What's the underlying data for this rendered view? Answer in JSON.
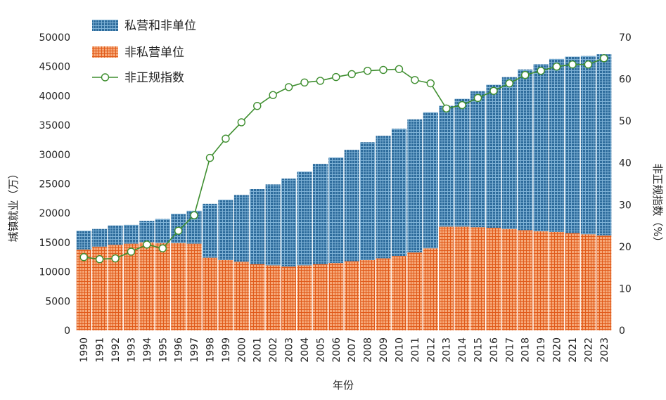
{
  "chart_data": {
    "type": "bar",
    "stacked": true,
    "categories": [
      "1990",
      "1991",
      "1992",
      "1993",
      "1994",
      "1995",
      "1996",
      "1997",
      "1998",
      "1999",
      "2000",
      "2001",
      "2002",
      "2003",
      "2004",
      "2005",
      "2006",
      "2007",
      "2008",
      "2009",
      "2010",
      "2011",
      "2012",
      "2013",
      "2014",
      "2015",
      "2016",
      "2017",
      "2018",
      "2019",
      "2020",
      "2021",
      "2022",
      "2023"
    ],
    "series": [
      {
        "name": "非私营单位",
        "axis": "left",
        "type": "bar",
        "color": "#E8702A",
        "values": [
          13800,
          14300,
          14600,
          14800,
          15000,
          14900,
          14900,
          14800,
          12400,
          12000,
          11700,
          11300,
          11100,
          10900,
          11100,
          11300,
          11500,
          11800,
          12000,
          12300,
          12700,
          13300,
          14000,
          17700,
          17700,
          17600,
          17500,
          17300,
          17100,
          16900,
          16800,
          16600,
          16400,
          16200
        ]
      },
      {
        "name": "私营和非单位",
        "axis": "left",
        "type": "bar",
        "color": "#1F5D8E",
        "values": [
          3200,
          3000,
          3300,
          3200,
          3700,
          4100,
          5000,
          5600,
          9200,
          10300,
          11400,
          12800,
          13800,
          15000,
          16000,
          17100,
          18000,
          19000,
          20100,
          20900,
          21700,
          22700,
          23200,
          20600,
          21800,
          23200,
          24400,
          25900,
          27400,
          28500,
          29500,
          30100,
          30400,
          30900
        ]
      },
      {
        "name": "非正规指数",
        "axis": "right",
        "type": "line",
        "color": "#3E8E2F",
        "values": [
          17.5,
          17,
          17.2,
          18.8,
          20.5,
          19.6,
          23.8,
          27.5,
          41.2,
          45.8,
          49.7,
          53.6,
          56.2,
          58.1,
          59.2,
          59.6,
          60.5,
          61.2,
          62,
          62.2,
          62.4,
          59.8,
          59,
          53,
          53.8,
          55.5,
          57.2,
          59,
          61,
          62,
          63,
          63.5,
          63.5,
          65
        ]
      }
    ],
    "xlabel": "年份",
    "ylabel": "城镇就业（万）",
    "y2label": "非正规指数（%）",
    "ylim": [
      0,
      50000
    ],
    "y2lim": [
      0,
      70
    ],
    "yticks": [
      "0",
      "5000",
      "10000",
      "15000",
      "20000",
      "25000",
      "30000",
      "35000",
      "40000",
      "45000",
      "50000"
    ],
    "y2ticks": [
      "0",
      "10",
      "20",
      "30",
      "40",
      "50",
      "60",
      "70"
    ],
    "grid": false,
    "legend_position": "top-left"
  }
}
